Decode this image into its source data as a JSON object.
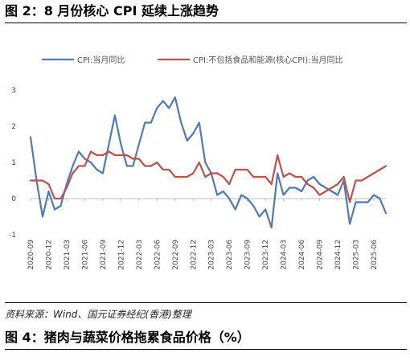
{
  "figure_title": "图 2：8 月份核心 CPI 延续上涨趋势",
  "source_note": "资料来源：Wind、国元证券经纪(香港)整理",
  "next_figure_title": "图 4：猪肉与蔬菜价格拖累食品价格（%）",
  "colors": {
    "cpi": "#4E7AB5",
    "core_cpi": "#C0504D"
  },
  "chart_data": {
    "type": "line",
    "title": "",
    "xlabel": "",
    "ylabel": "",
    "ylim": [
      -1,
      3
    ],
    "yticks": [
      "-1",
      "0",
      "1",
      "2",
      "3"
    ],
    "grid": false,
    "legend_position": "top",
    "x_tick_labels": [
      "2020-09",
      "2020-12",
      "2021-03",
      "2021-06",
      "2021-09",
      "2021-12",
      "2022-03",
      "2022-06",
      "2022-09",
      "2022-12",
      "2023-03",
      "2023-06",
      "2023-09",
      "2023-12",
      "2024-03",
      "2024-06",
      "2024-09",
      "2024-12",
      "2025-03",
      "2025-06"
    ],
    "x": [
      "2020-09",
      "2020-10",
      "2020-11",
      "2020-12",
      "2021-01",
      "2021-02",
      "2021-03",
      "2021-04",
      "2021-05",
      "2021-06",
      "2021-07",
      "2021-08",
      "2021-09",
      "2021-10",
      "2021-11",
      "2021-12",
      "2022-01",
      "2022-02",
      "2022-03",
      "2022-04",
      "2022-05",
      "2022-06",
      "2022-07",
      "2022-08",
      "2022-09",
      "2022-10",
      "2022-11",
      "2022-12",
      "2023-01",
      "2023-02",
      "2023-03",
      "2023-04",
      "2023-05",
      "2023-06",
      "2023-07",
      "2023-08",
      "2023-09",
      "2023-10",
      "2023-11",
      "2023-12",
      "2024-01",
      "2024-02",
      "2024-03",
      "2024-04",
      "2024-05",
      "2024-06",
      "2024-07",
      "2024-08",
      "2024-09",
      "2024-10",
      "2024-11",
      "2024-12",
      "2025-01",
      "2025-02",
      "2025-03",
      "2025-04",
      "2025-05",
      "2025-06",
      "2025-07",
      "2025-08"
    ],
    "series": [
      {
        "name": "CPI:当月同比",
        "values": [
          1.7,
          0.5,
          -0.5,
          0.2,
          -0.3,
          -0.2,
          0.4,
          0.9,
          1.3,
          1.1,
          1.0,
          0.8,
          0.7,
          1.5,
          2.3,
          1.5,
          0.9,
          0.9,
          1.5,
          2.1,
          2.1,
          2.5,
          2.7,
          2.5,
          2.8,
          2.1,
          1.6,
          1.8,
          2.1,
          1.0,
          0.7,
          0.1,
          0.2,
          0.0,
          -0.3,
          0.1,
          0.0,
          -0.2,
          -0.5,
          -0.3,
          -0.8,
          0.7,
          0.1,
          0.3,
          0.3,
          0.2,
          0.5,
          0.6,
          0.4,
          0.3,
          0.2,
          0.1,
          0.5,
          -0.7,
          -0.1,
          -0.1,
          -0.1,
          0.1,
          0.0,
          -0.4
        ]
      },
      {
        "name": "CPI:不包括食品和能源(核心CPI):当月同比",
        "values": [
          0.5,
          0.5,
          0.5,
          0.4,
          0.0,
          0.0,
          0.3,
          0.7,
          0.9,
          0.9,
          1.3,
          1.2,
          1.2,
          1.3,
          1.2,
          1.2,
          1.2,
          1.1,
          1.1,
          0.9,
          0.9,
          1.0,
          0.8,
          0.8,
          0.6,
          0.6,
          0.6,
          0.7,
          1.0,
          0.6,
          0.7,
          0.7,
          0.6,
          0.4,
          0.8,
          0.8,
          0.8,
          0.6,
          0.6,
          0.6,
          0.4,
          1.2,
          0.6,
          0.7,
          0.6,
          0.6,
          0.4,
          0.3,
          0.1,
          0.2,
          0.3,
          0.4,
          0.6,
          -0.1,
          0.5,
          0.5,
          0.6,
          0.7,
          0.8,
          0.9
        ]
      }
    ]
  }
}
